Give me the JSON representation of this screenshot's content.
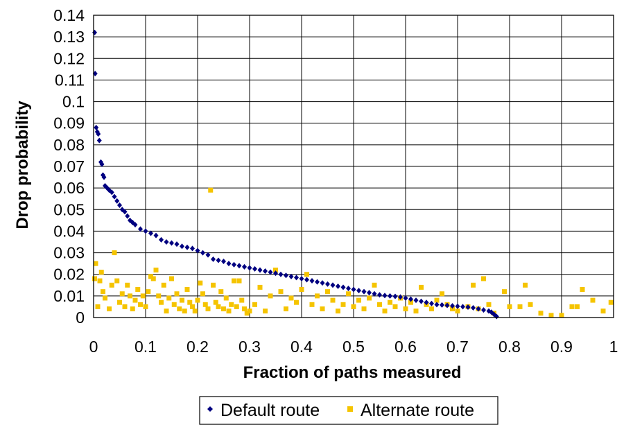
{
  "chart_data": {
    "type": "scatter",
    "title": "",
    "xlabel": "Fraction of paths measured",
    "ylabel": "Drop probability",
    "xlim": [
      0,
      1
    ],
    "ylim": [
      0,
      0.14
    ],
    "xticks": [
      "0",
      "0.1",
      "0.2",
      "0.3",
      "0.4",
      "0.5",
      "0.6",
      "0.7",
      "0.8",
      "0.9",
      "1"
    ],
    "yticks": [
      "0",
      "0.01",
      "0.02",
      "0.03",
      "0.04",
      "0.05",
      "0.06",
      "0.07",
      "0.08",
      "0.09",
      "0.1",
      "0.11",
      "0.12",
      "0.13",
      "0.14"
    ],
    "grid": true,
    "legend_position": "bottom",
    "series": [
      {
        "name": "Default route",
        "color": "#000080",
        "marker": "diamond",
        "points": [
          [
            0.002,
            0.132
          ],
          [
            0.003,
            0.113
          ],
          [
            0.005,
            0.088
          ],
          [
            0.007,
            0.086
          ],
          [
            0.009,
            0.085
          ],
          [
            0.011,
            0.082
          ],
          [
            0.014,
            0.072
          ],
          [
            0.016,
            0.071
          ],
          [
            0.018,
            0.066
          ],
          [
            0.02,
            0.065
          ],
          [
            0.022,
            0.061
          ],
          [
            0.026,
            0.06
          ],
          [
            0.03,
            0.059
          ],
          [
            0.035,
            0.058
          ],
          [
            0.04,
            0.056
          ],
          [
            0.045,
            0.054
          ],
          [
            0.05,
            0.052
          ],
          [
            0.055,
            0.05
          ],
          [
            0.06,
            0.049
          ],
          [
            0.065,
            0.047
          ],
          [
            0.07,
            0.045
          ],
          [
            0.075,
            0.044
          ],
          [
            0.08,
            0.043
          ],
          [
            0.09,
            0.041
          ],
          [
            0.1,
            0.04
          ],
          [
            0.11,
            0.039
          ],
          [
            0.12,
            0.038
          ],
          [
            0.13,
            0.036
          ],
          [
            0.14,
            0.035
          ],
          [
            0.15,
            0.0345
          ],
          [
            0.16,
            0.034
          ],
          [
            0.17,
            0.033
          ],
          [
            0.18,
            0.0325
          ],
          [
            0.19,
            0.032
          ],
          [
            0.2,
            0.031
          ],
          [
            0.21,
            0.03
          ],
          [
            0.22,
            0.029
          ],
          [
            0.23,
            0.027
          ],
          [
            0.24,
            0.0265
          ],
          [
            0.25,
            0.026
          ],
          [
            0.26,
            0.025
          ],
          [
            0.27,
            0.0245
          ],
          [
            0.28,
            0.024
          ],
          [
            0.29,
            0.0235
          ],
          [
            0.3,
            0.023
          ],
          [
            0.31,
            0.0225
          ],
          [
            0.32,
            0.022
          ],
          [
            0.33,
            0.0215
          ],
          [
            0.34,
            0.021
          ],
          [
            0.35,
            0.0205
          ],
          [
            0.36,
            0.02
          ],
          [
            0.37,
            0.0195
          ],
          [
            0.38,
            0.019
          ],
          [
            0.39,
            0.0185
          ],
          [
            0.4,
            0.018
          ],
          [
            0.41,
            0.0175
          ],
          [
            0.42,
            0.017
          ],
          [
            0.43,
            0.0165
          ],
          [
            0.44,
            0.016
          ],
          [
            0.45,
            0.0155
          ],
          [
            0.46,
            0.015
          ],
          [
            0.47,
            0.0145
          ],
          [
            0.48,
            0.014
          ],
          [
            0.49,
            0.0135
          ],
          [
            0.5,
            0.013
          ],
          [
            0.51,
            0.0125
          ],
          [
            0.52,
            0.012
          ],
          [
            0.53,
            0.0115
          ],
          [
            0.54,
            0.011
          ],
          [
            0.55,
            0.0105
          ],
          [
            0.56,
            0.0102
          ],
          [
            0.57,
            0.01
          ],
          [
            0.58,
            0.0098
          ],
          [
            0.59,
            0.0095
          ],
          [
            0.6,
            0.009
          ],
          [
            0.61,
            0.0085
          ],
          [
            0.62,
            0.008
          ],
          [
            0.63,
            0.0075
          ],
          [
            0.64,
            0.007
          ],
          [
            0.65,
            0.0065
          ],
          [
            0.66,
            0.006
          ],
          [
            0.67,
            0.0058
          ],
          [
            0.68,
            0.0056
          ],
          [
            0.69,
            0.0054
          ],
          [
            0.7,
            0.0052
          ],
          [
            0.71,
            0.005
          ],
          [
            0.72,
            0.0048
          ],
          [
            0.73,
            0.0045
          ],
          [
            0.74,
            0.004
          ],
          [
            0.75,
            0.0035
          ],
          [
            0.76,
            0.003
          ],
          [
            0.765,
            0.0025
          ],
          [
            0.77,
            0.0015
          ],
          [
            0.775,
            0.0005
          ]
        ]
      },
      {
        "name": "Alternate route",
        "color": "#f5c400",
        "marker": "square",
        "points": [
          [
            0.002,
            0.018
          ],
          [
            0.004,
            0.025
          ],
          [
            0.008,
            0.005
          ],
          [
            0.012,
            0.017
          ],
          [
            0.015,
            0.021
          ],
          [
            0.018,
            0.012
          ],
          [
            0.022,
            0.009
          ],
          [
            0.03,
            0.004
          ],
          [
            0.035,
            0.015
          ],
          [
            0.04,
            0.03
          ],
          [
            0.045,
            0.017
          ],
          [
            0.05,
            0.007
          ],
          [
            0.055,
            0.011
          ],
          [
            0.06,
            0.005
          ],
          [
            0.065,
            0.015
          ],
          [
            0.07,
            0.01
          ],
          [
            0.075,
            0.004
          ],
          [
            0.08,
            0.008
          ],
          [
            0.085,
            0.013
          ],
          [
            0.09,
            0.006
          ],
          [
            0.095,
            0.01
          ],
          [
            0.1,
            0.005
          ],
          [
            0.105,
            0.012
          ],
          [
            0.11,
            0.019
          ],
          [
            0.115,
            0.018
          ],
          [
            0.12,
            0.022
          ],
          [
            0.125,
            0.01
          ],
          [
            0.13,
            0.007
          ],
          [
            0.135,
            0.015
          ],
          [
            0.14,
            0.003
          ],
          [
            0.145,
            0.009
          ],
          [
            0.15,
            0.018
          ],
          [
            0.155,
            0.006
          ],
          [
            0.16,
            0.011
          ],
          [
            0.165,
            0.004
          ],
          [
            0.17,
            0.008
          ],
          [
            0.175,
            0.003
          ],
          [
            0.18,
            0.013
          ],
          [
            0.185,
            0.007
          ],
          [
            0.19,
            0.005
          ],
          [
            0.195,
            0.003
          ],
          [
            0.2,
            0.008
          ],
          [
            0.205,
            0.016
          ],
          [
            0.21,
            0.011
          ],
          [
            0.215,
            0.006
          ],
          [
            0.22,
            0.004
          ],
          [
            0.225,
            0.059
          ],
          [
            0.23,
            0.015
          ],
          [
            0.235,
            0.007
          ],
          [
            0.24,
            0.005
          ],
          [
            0.245,
            0.012
          ],
          [
            0.25,
            0.004
          ],
          [
            0.255,
            0.009
          ],
          [
            0.26,
            0.003
          ],
          [
            0.265,
            0.006
          ],
          [
            0.27,
            0.017
          ],
          [
            0.275,
            0.005
          ],
          [
            0.28,
            0.017
          ],
          [
            0.285,
            0.008
          ],
          [
            0.29,
            0.004
          ],
          [
            0.295,
            0.002
          ],
          [
            0.3,
            0.003
          ],
          [
            0.31,
            0.006
          ],
          [
            0.32,
            0.014
          ],
          [
            0.33,
            0.003
          ],
          [
            0.34,
            0.01
          ],
          [
            0.35,
            0.022
          ],
          [
            0.36,
            0.012
          ],
          [
            0.37,
            0.004
          ],
          [
            0.38,
            0.009
          ],
          [
            0.39,
            0.007
          ],
          [
            0.4,
            0.013
          ],
          [
            0.41,
            0.02
          ],
          [
            0.42,
            0.006
          ],
          [
            0.43,
            0.01
          ],
          [
            0.44,
            0.004
          ],
          [
            0.45,
            0.012
          ],
          [
            0.46,
            0.008
          ],
          [
            0.47,
            0.003
          ],
          [
            0.48,
            0.006
          ],
          [
            0.49,
            0.011
          ],
          [
            0.5,
            0.005
          ],
          [
            0.51,
            0.008
          ],
          [
            0.52,
            0.004
          ],
          [
            0.53,
            0.009
          ],
          [
            0.54,
            0.015
          ],
          [
            0.55,
            0.006
          ],
          [
            0.56,
            0.003
          ],
          [
            0.57,
            0.007
          ],
          [
            0.58,
            0.005
          ],
          [
            0.59,
            0.009
          ],
          [
            0.6,
            0.004
          ],
          [
            0.61,
            0.007
          ],
          [
            0.62,
            0.003
          ],
          [
            0.63,
            0.014
          ],
          [
            0.64,
            0.006
          ],
          [
            0.65,
            0.004
          ],
          [
            0.66,
            0.008
          ],
          [
            0.67,
            0.011
          ],
          [
            0.68,
            0.006
          ],
          [
            0.69,
            0.004
          ],
          [
            0.7,
            0.003
          ],
          [
            0.72,
            0.005
          ],
          [
            0.73,
            0.015
          ],
          [
            0.74,
            0.004
          ],
          [
            0.75,
            0.018
          ],
          [
            0.76,
            0.006
          ],
          [
            0.77,
            0.002
          ],
          [
            0.79,
            0.012
          ],
          [
            0.8,
            0.005
          ],
          [
            0.82,
            0.005
          ],
          [
            0.83,
            0.015
          ],
          [
            0.84,
            0.006
          ],
          [
            0.86,
            0.002
          ],
          [
            0.88,
            0.001
          ],
          [
            0.9,
            0.001
          ],
          [
            0.92,
            0.005
          ],
          [
            0.93,
            0.005
          ],
          [
            0.94,
            0.013
          ],
          [
            0.96,
            0.008
          ],
          [
            0.98,
            0.003
          ],
          [
            0.995,
            0.007
          ]
        ]
      }
    ]
  }
}
